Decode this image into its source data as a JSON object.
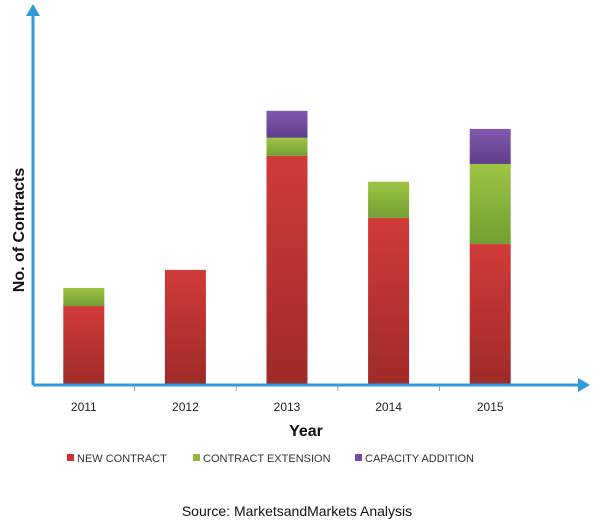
{
  "chart_data": {
    "type": "bar",
    "stacked": true,
    "title": "",
    "xlabel": "Year",
    "ylabel": "No. of Contracts",
    "ylim": [
      0,
      100
    ],
    "y_ticks_shown": false,
    "grid": false,
    "legend_position": "bottom",
    "categories": [
      "2011",
      "2012",
      "2013",
      "2014",
      "2015"
    ],
    "series": [
      {
        "name": "NEW CONTRACT",
        "color": "#c83434",
        "values": [
          21.4,
          31.2,
          62.1,
          45.3,
          38.2
        ]
      },
      {
        "name": "CONTRACT EXTENSION",
        "color": "#8dba3e",
        "values": [
          4.9,
          0,
          4.9,
          9.8,
          21.7
        ]
      },
      {
        "name": "CAPACITY ADDITION",
        "color": "#7350a0",
        "values": [
          0,
          0,
          7.3,
          0,
          9.5
        ]
      }
    ],
    "axis_color": "#2e9bd6",
    "source": "Source: MarketsandMarkets Analysis"
  }
}
